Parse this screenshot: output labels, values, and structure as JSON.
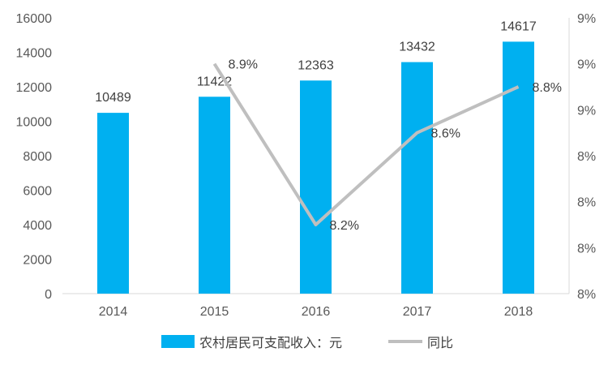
{
  "chart_data": {
    "type": "bar",
    "categories": [
      "2014",
      "2015",
      "2016",
      "2017",
      "2018"
    ],
    "series": [
      {
        "name": "农村居民可支配收入：元",
        "type": "bar",
        "axis": "left",
        "values": [
          10489,
          11422,
          12363,
          13432,
          14617
        ],
        "data_labels": [
          "10489",
          "11422",
          "12363",
          "13432",
          "14617"
        ],
        "color": "#00b0f0"
      },
      {
        "name": "同比",
        "type": "line",
        "axis": "right",
        "values": [
          null,
          8.9,
          8.2,
          8.6,
          8.8
        ],
        "data_labels": [
          "",
          "8.9%",
          "8.2%",
          "8.6%",
          "8.8%"
        ],
        "color": "#bfbfbf"
      }
    ],
    "y_left": {
      "ylim": [
        0,
        16000
      ],
      "ticks": [
        "0",
        "2000",
        "4000",
        "6000",
        "8000",
        "10000",
        "12000",
        "14000",
        "16000"
      ]
    },
    "y_right": {
      "ylim": [
        7.9,
        9.1
      ],
      "ticks": [
        "8%",
        "8%",
        "8%",
        "8%",
        "9%",
        "9%",
        "9%"
      ]
    },
    "grid": false,
    "legend_position": "bottom"
  }
}
